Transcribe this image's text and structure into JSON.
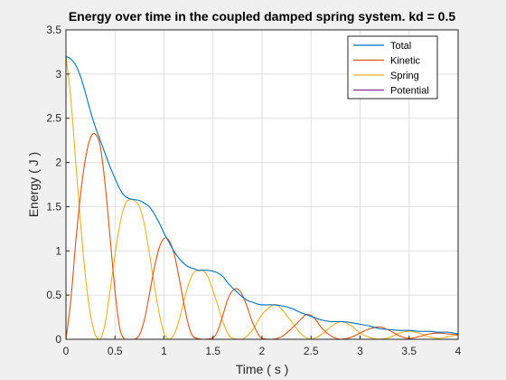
{
  "chart_data": {
    "type": "line",
    "title": "Energy over time in the coupled damped spring system. kd = 0.5",
    "xlabel": "Time ( s )",
    "ylabel": "Energy ( J )",
    "xlim": [
      0,
      4
    ],
    "ylim": [
      0,
      3.5
    ],
    "xticks": [
      "0",
      "0.5",
      "1",
      "1.5",
      "2",
      "2.5",
      "3",
      "3.5",
      "4"
    ],
    "yticks": [
      "0",
      "0.5",
      "1",
      "1.5",
      "2",
      "2.5",
      "3",
      "3.5"
    ],
    "grid": true,
    "legend_position": "top-right",
    "series": [
      {
        "name": "Total",
        "color": "#0072BD",
        "points": [
          [
            0,
            3.2
          ],
          [
            0.05,
            3.17
          ],
          [
            0.1,
            3.1
          ],
          [
            0.15,
            2.97
          ],
          [
            0.2,
            2.78
          ],
          [
            0.25,
            2.58
          ],
          [
            0.3,
            2.4
          ],
          [
            0.35,
            2.25
          ],
          [
            0.4,
            2.1
          ],
          [
            0.45,
            1.95
          ],
          [
            0.5,
            1.82
          ],
          [
            0.55,
            1.7
          ],
          [
            0.6,
            1.62
          ],
          [
            0.65,
            1.59
          ],
          [
            0.7,
            1.58
          ],
          [
            0.75,
            1.57
          ],
          [
            0.8,
            1.54
          ],
          [
            0.85,
            1.5
          ],
          [
            0.9,
            1.42
          ],
          [
            0.95,
            1.32
          ],
          [
            1.0,
            1.2
          ],
          [
            1.05,
            1.1
          ],
          [
            1.1,
            1.0
          ],
          [
            1.15,
            0.92
          ],
          [
            1.2,
            0.86
          ],
          [
            1.25,
            0.82
          ],
          [
            1.3,
            0.8
          ],
          [
            1.35,
            0.78
          ],
          [
            1.4,
            0.78
          ],
          [
            1.45,
            0.78
          ],
          [
            1.5,
            0.77
          ],
          [
            1.55,
            0.75
          ],
          [
            1.6,
            0.71
          ],
          [
            1.65,
            0.64
          ],
          [
            1.7,
            0.58
          ],
          [
            1.75,
            0.53
          ],
          [
            1.8,
            0.48
          ],
          [
            1.85,
            0.44
          ],
          [
            1.9,
            0.42
          ],
          [
            1.95,
            0.4
          ],
          [
            2.0,
            0.39
          ],
          [
            2.1,
            0.39
          ],
          [
            2.2,
            0.38
          ],
          [
            2.3,
            0.35
          ],
          [
            2.4,
            0.3
          ],
          [
            2.5,
            0.26
          ],
          [
            2.6,
            0.22
          ],
          [
            2.7,
            0.2
          ],
          [
            2.8,
            0.2
          ],
          [
            2.9,
            0.19
          ],
          [
            3.0,
            0.17
          ],
          [
            3.1,
            0.15
          ],
          [
            3.2,
            0.12
          ],
          [
            3.3,
            0.11
          ],
          [
            3.4,
            0.1
          ],
          [
            3.5,
            0.1
          ],
          [
            3.6,
            0.09
          ],
          [
            3.7,
            0.09
          ],
          [
            3.8,
            0.08
          ],
          [
            3.9,
            0.08
          ],
          [
            4.0,
            0.06
          ]
        ]
      },
      {
        "name": "Kinetic",
        "color": "#D95319",
        "points": [
          [
            0,
            0
          ],
          [
            0.05,
            0.45
          ],
          [
            0.1,
            1.1
          ],
          [
            0.15,
            1.65
          ],
          [
            0.2,
            2.05
          ],
          [
            0.25,
            2.28
          ],
          [
            0.3,
            2.32
          ],
          [
            0.35,
            2.18
          ],
          [
            0.4,
            1.75
          ],
          [
            0.45,
            1.15
          ],
          [
            0.5,
            0.55
          ],
          [
            0.55,
            0.12
          ],
          [
            0.6,
            0.0
          ],
          [
            0.65,
            0.0
          ],
          [
            0.7,
            0.0
          ],
          [
            0.75,
            0.05
          ],
          [
            0.8,
            0.22
          ],
          [
            0.85,
            0.5
          ],
          [
            0.9,
            0.8
          ],
          [
            0.95,
            1.03
          ],
          [
            1.0,
            1.14
          ],
          [
            1.05,
            1.12
          ],
          [
            1.1,
            0.98
          ],
          [
            1.15,
            0.72
          ],
          [
            1.2,
            0.42
          ],
          [
            1.25,
            0.16
          ],
          [
            1.3,
            0.03
          ],
          [
            1.4,
            0.0
          ],
          [
            1.5,
            0.02
          ],
          [
            1.55,
            0.1
          ],
          [
            1.6,
            0.27
          ],
          [
            1.65,
            0.45
          ],
          [
            1.7,
            0.55
          ],
          [
            1.75,
            0.57
          ],
          [
            1.8,
            0.5
          ],
          [
            1.85,
            0.36
          ],
          [
            1.9,
            0.2
          ],
          [
            1.95,
            0.08
          ],
          [
            2.0,
            0.01
          ],
          [
            2.1,
            0.0
          ],
          [
            2.2,
            0.03
          ],
          [
            2.3,
            0.12
          ],
          [
            2.4,
            0.23
          ],
          [
            2.45,
            0.28
          ],
          [
            2.5,
            0.27
          ],
          [
            2.55,
            0.22
          ],
          [
            2.6,
            0.14
          ],
          [
            2.7,
            0.04
          ],
          [
            2.8,
            0.0
          ],
          [
            2.9,
            0.02
          ],
          [
            3.0,
            0.07
          ],
          [
            3.1,
            0.12
          ],
          [
            3.2,
            0.14
          ],
          [
            3.3,
            0.1
          ],
          [
            3.4,
            0.04
          ],
          [
            3.5,
            0.01
          ],
          [
            3.6,
            0.03
          ],
          [
            3.7,
            0.06
          ],
          [
            3.8,
            0.07
          ],
          [
            3.9,
            0.06
          ],
          [
            4.0,
            0.05
          ]
        ]
      },
      {
        "name": "Spring",
        "color": "#EDB120",
        "points": [
          [
            0,
            3.2
          ],
          [
            0.05,
            2.72
          ],
          [
            0.1,
            2.0
          ],
          [
            0.15,
            1.3
          ],
          [
            0.2,
            0.7
          ],
          [
            0.25,
            0.28
          ],
          [
            0.3,
            0.05
          ],
          [
            0.35,
            0.0
          ],
          [
            0.4,
            0.18
          ],
          [
            0.45,
            0.55
          ],
          [
            0.5,
            0.95
          ],
          [
            0.55,
            1.3
          ],
          [
            0.6,
            1.52
          ],
          [
            0.65,
            1.58
          ],
          [
            0.7,
            1.57
          ],
          [
            0.75,
            1.5
          ],
          [
            0.8,
            1.3
          ],
          [
            0.85,
            0.98
          ],
          [
            0.9,
            0.62
          ],
          [
            0.95,
            0.3
          ],
          [
            1.0,
            0.07
          ],
          [
            1.05,
            0.0
          ],
          [
            1.1,
            0.05
          ],
          [
            1.15,
            0.2
          ],
          [
            1.2,
            0.42
          ],
          [
            1.25,
            0.62
          ],
          [
            1.3,
            0.75
          ],
          [
            1.35,
            0.78
          ],
          [
            1.4,
            0.78
          ],
          [
            1.45,
            0.7
          ],
          [
            1.5,
            0.55
          ],
          [
            1.55,
            0.38
          ],
          [
            1.6,
            0.2
          ],
          [
            1.65,
            0.07
          ],
          [
            1.7,
            0.01
          ],
          [
            1.8,
            0.0
          ],
          [
            1.9,
            0.1
          ],
          [
            2.0,
            0.28
          ],
          [
            2.1,
            0.38
          ],
          [
            2.15,
            0.39
          ],
          [
            2.2,
            0.34
          ],
          [
            2.3,
            0.2
          ],
          [
            2.4,
            0.06
          ],
          [
            2.5,
            0.0
          ],
          [
            2.6,
            0.05
          ],
          [
            2.7,
            0.14
          ],
          [
            2.8,
            0.2
          ],
          [
            2.9,
            0.16
          ],
          [
            3.0,
            0.07
          ],
          [
            3.1,
            0.02
          ],
          [
            3.2,
            0.0
          ],
          [
            3.3,
            0.02
          ],
          [
            3.4,
            0.07
          ],
          [
            3.5,
            0.09
          ],
          [
            3.6,
            0.07
          ],
          [
            3.7,
            0.03
          ],
          [
            3.8,
            0.01
          ],
          [
            3.9,
            0.03
          ],
          [
            4.0,
            0.05
          ]
        ]
      },
      {
        "name": "Potential",
        "color": "#7E2F8E",
        "points": [
          [
            0,
            0
          ],
          [
            4.0,
            0
          ]
        ]
      }
    ]
  }
}
